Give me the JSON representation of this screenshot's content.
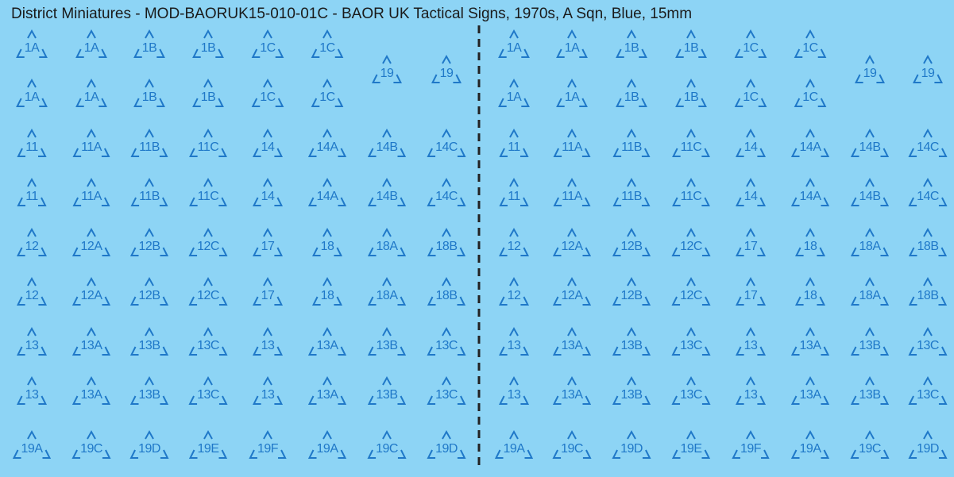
{
  "title": "District Miniatures - MOD-BAORUK15-010-01C - BAOR UK Tactical Signs, 1970s, A Sqn, Blue, 15mm",
  "top_block": {
    "rows": [
      [
        "1A",
        "1A",
        "1B",
        "1B",
        "1C",
        "1C"
      ],
      [
        "1A",
        "1A",
        "1B",
        "1B",
        "1C",
        "1C"
      ]
    ],
    "side": [
      "19",
      "19"
    ]
  },
  "grid_rows": [
    [
      "11",
      "11A",
      "11B",
      "11C",
      "14",
      "14A",
      "14B",
      "14C"
    ],
    [
      "11",
      "11A",
      "11B",
      "11C",
      "14",
      "14A",
      "14B",
      "14C"
    ],
    [
      "12",
      "12A",
      "12B",
      "12C",
      "17",
      "18",
      "18A",
      "18B"
    ],
    [
      "12",
      "12A",
      "12B",
      "12C",
      "17",
      "18",
      "18A",
      "18B"
    ],
    [
      "13",
      "13A",
      "13B",
      "13C",
      "13",
      "13A",
      "13B",
      "13C"
    ],
    [
      "13",
      "13A",
      "13B",
      "13C",
      "13",
      "13A",
      "13B",
      "13C"
    ],
    [
      "19A",
      "19C",
      "19D",
      "19E",
      "19F",
      "19A",
      "19C",
      "19D"
    ]
  ]
}
